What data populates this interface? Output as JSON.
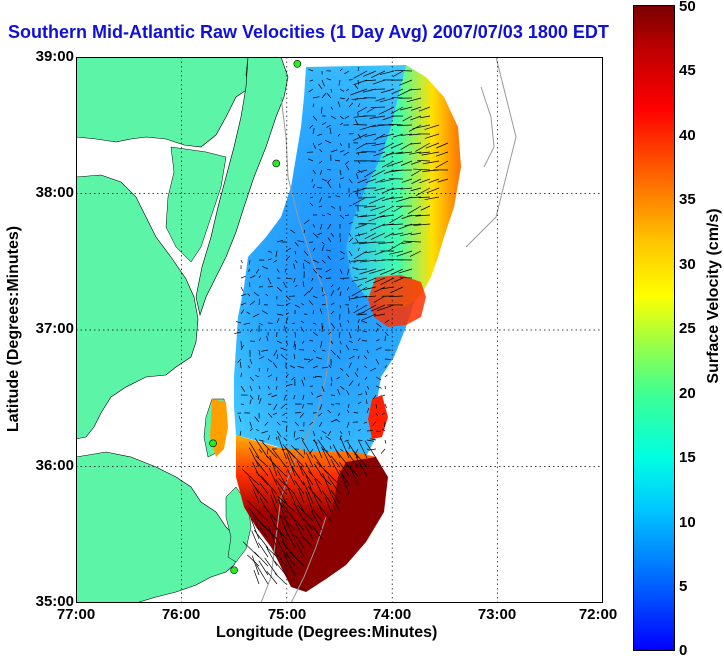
{
  "title": "Southern Mid-Atlantic Raw Velocities (1 Day Avg) 2007/07/03 1800 EDT",
  "axes": {
    "xlabel": "Longitude (Degrees:Minutes)",
    "ylabel": "Latitude (Degrees:Minutes)",
    "xticks": [
      "77:00",
      "76:00",
      "75:00",
      "74:00",
      "73:00",
      "72:00"
    ],
    "yticks": [
      "39:00",
      "38:00",
      "37:00",
      "36:00",
      "35:00"
    ],
    "xlim": [
      -77,
      -72
    ],
    "ylim": [
      35,
      39
    ],
    "grid": "dotted"
  },
  "colorbar": {
    "label": "Surface Velocity (cm/s)",
    "range": [
      0,
      50
    ],
    "ticks": [
      "0",
      "5",
      "10",
      "15",
      "20",
      "25",
      "30",
      "35",
      "40",
      "45",
      "50"
    ],
    "colors": [
      "#0000ff",
      "#00c8ff",
      "#40ff90",
      "#ffff00",
      "#ff6000",
      "#ff0000",
      "#7a0000"
    ]
  },
  "colors": {
    "land": "#5cf5a8",
    "water": "#ffffff",
    "station": "#22ee22",
    "arrows": "#000000",
    "bathymetry": "#999999"
  },
  "stations": [
    {
      "lon": -74.9,
      "lat": 38.95
    },
    {
      "lon": -75.1,
      "lat": 38.22
    },
    {
      "lon": -75.7,
      "lat": 36.17
    },
    {
      "lon": -75.5,
      "lat": 35.24
    }
  ]
}
